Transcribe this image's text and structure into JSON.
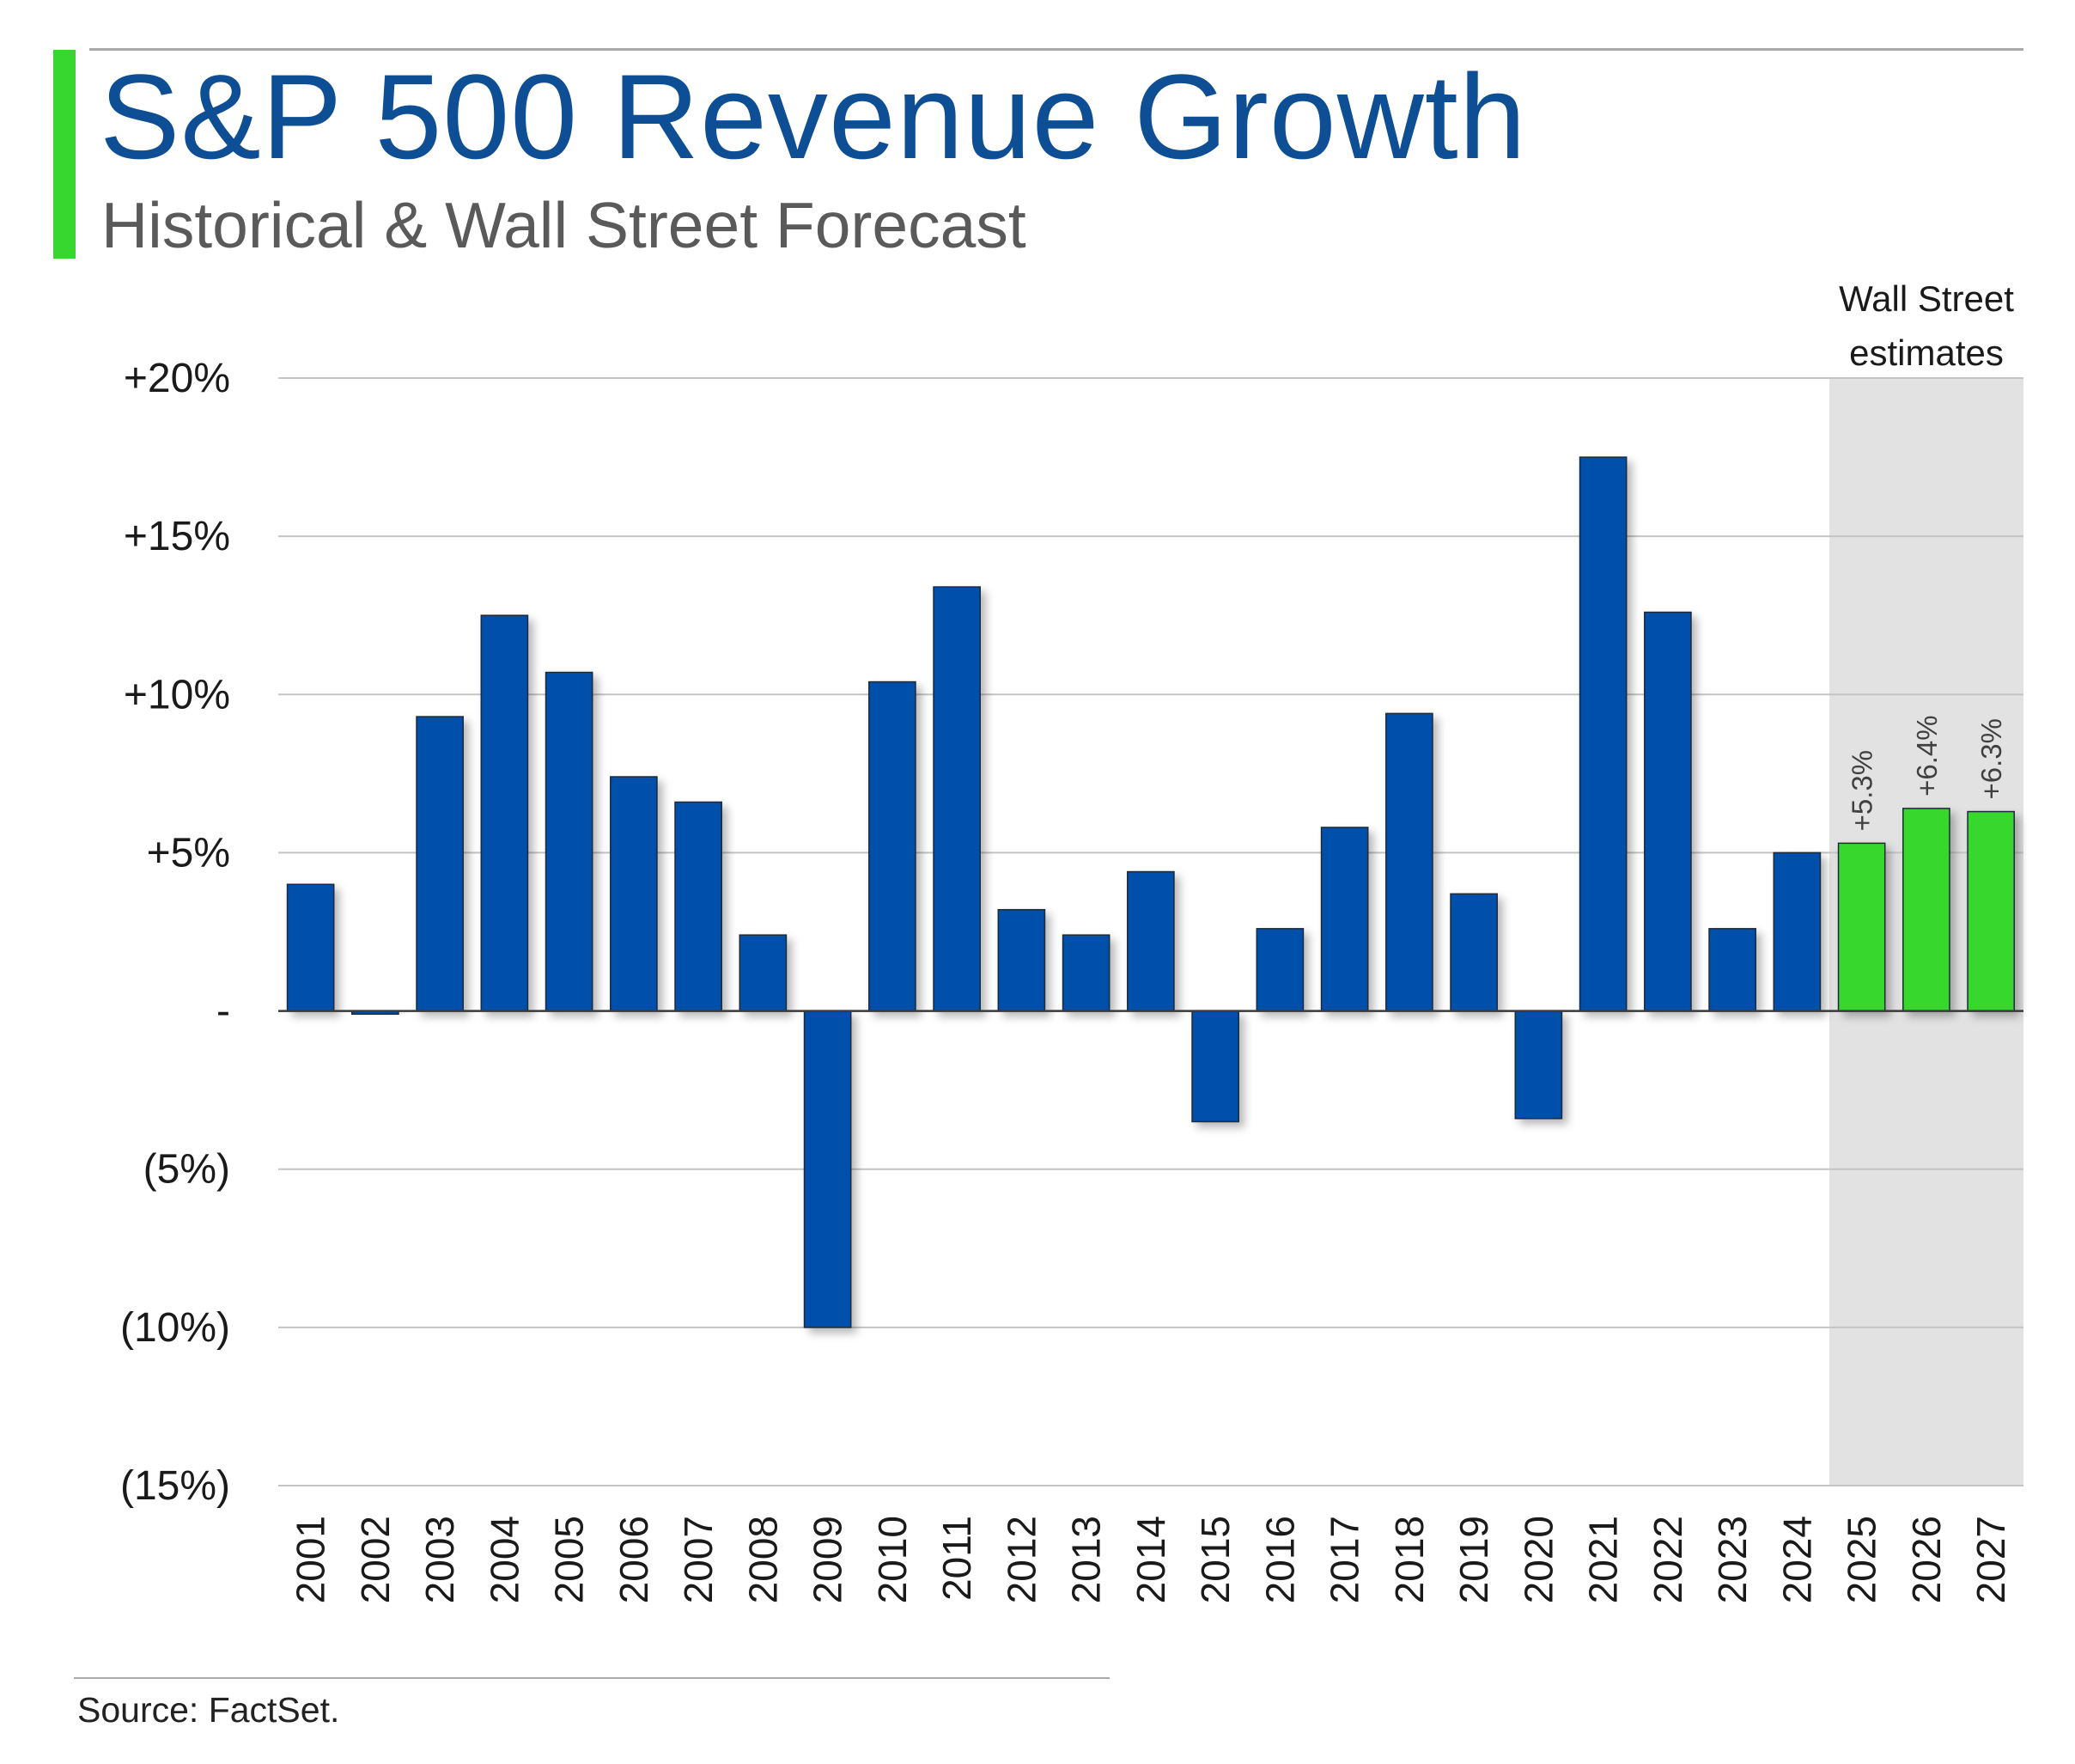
{
  "header": {
    "title": "S&P 500 Revenue Growth",
    "subtitle": "Historical & Wall Street Forecast"
  },
  "footer": {
    "source": "Source: FactSet."
  },
  "colors": {
    "historical_bar": "#0050aa",
    "estimate_bar": "#37d72f",
    "accent": "#37d72f",
    "title": "#0d4e94",
    "estimate_shade": "#e2e2e2"
  },
  "chart_data": {
    "type": "bar",
    "title": "S&P 500 Revenue Growth",
    "subtitle": "Historical & Wall Street Forecast",
    "xlabel": "",
    "ylabel": "",
    "ylim": [
      -15,
      20
    ],
    "y_ticks": [
      20,
      15,
      10,
      5,
      0,
      -5,
      -10,
      -15
    ],
    "y_tick_labels": [
      "+20%",
      "+15%",
      "+10%",
      "+5%",
      "-",
      "(5%)",
      "(10%)",
      "(15%)"
    ],
    "grid": true,
    "categories": [
      "2001",
      "2002",
      "2003",
      "2004",
      "2005",
      "2006",
      "2007",
      "2008",
      "2009",
      "2010",
      "2011",
      "2012",
      "2013",
      "2014",
      "2015",
      "2016",
      "2017",
      "2018",
      "2019",
      "2020",
      "2021",
      "2022",
      "2023",
      "2024",
      "2025",
      "2026",
      "2027"
    ],
    "values": [
      4.0,
      -0.1,
      9.3,
      12.5,
      10.7,
      7.4,
      6.6,
      2.4,
      -10.0,
      10.4,
      13.4,
      3.2,
      2.4,
      4.4,
      -3.5,
      2.6,
      5.8,
      9.4,
      3.7,
      -3.4,
      17.5,
      12.6,
      2.6,
      5.0,
      5.3,
      6.4,
      6.3
    ],
    "estimate_start_index": 24,
    "estimate_region_label": "Wall Street estimates",
    "data_labels": {
      "24": "+5.3%",
      "25": "+6.4%",
      "26": "+6.3%"
    }
  }
}
